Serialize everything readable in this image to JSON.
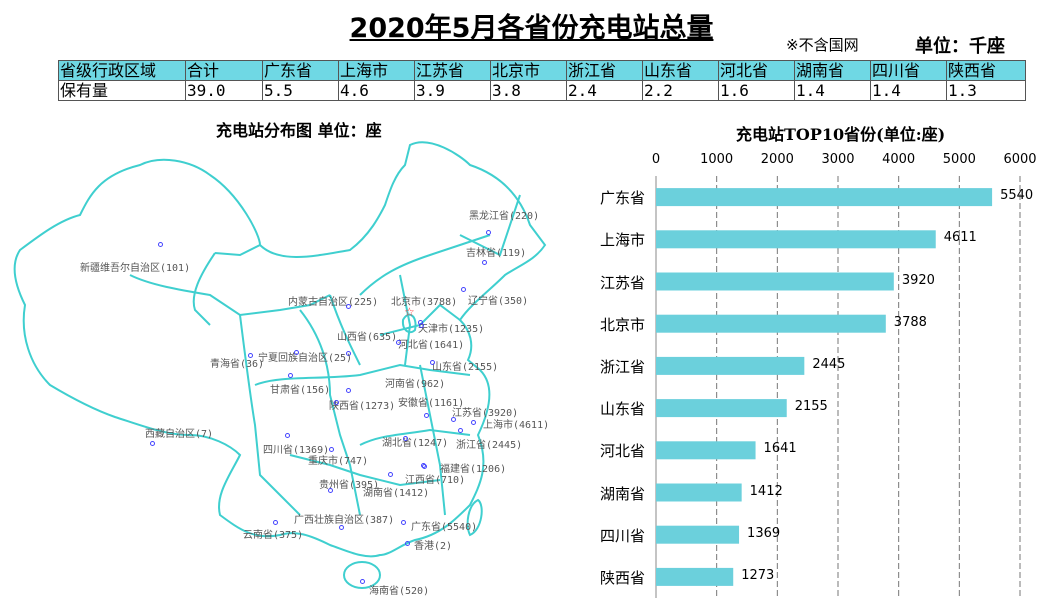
{
  "title": "2020年5月各省份充电站总量",
  "note": "※不含国网",
  "unit": "单位：千座",
  "table": {
    "header": [
      "省级行政区域",
      "合计",
      "广东省",
      "上海市",
      "江苏省",
      "北京市",
      "浙江省",
      "山东省",
      "河北省",
      "湖南省",
      "四川省",
      "陕西省"
    ],
    "row": [
      "保有量",
      "39.0",
      "5.5",
      "4.6",
      "3.9",
      "3.8",
      "2.4",
      "2.2",
      "1.6",
      "1.4",
      "1.4",
      "1.3"
    ]
  },
  "map": {
    "title": "充电站分布图   单位：座",
    "labels": [
      "新疆维吾尔自治区(101)",
      "黑龙江省(220)",
      "吉林省(119)",
      "内蒙古自治区(225)",
      "北京市(3788)",
      "辽宁省(350)",
      "天津市(1235)",
      "山西省(635)",
      "河北省(1641)",
      "青海省(36)",
      "宁夏回族自治区(25)",
      "山东省(2155)",
      "甘肃省(156)",
      "河南省(962)",
      "陕西省(1273)",
      "安徽省(1161)",
      "江苏省(3920)",
      "上海市(4611)",
      "西藏自治区(7)",
      "四川省(1369)",
      "湖北省(1247)",
      "浙江省(2445)",
      "重庆市(747)",
      "福建省(1206)",
      "贵州省(395)",
      "江西省(710)",
      "湖南省(1412)",
      "广西壮族自治区(387)",
      "广东省(5540)",
      "云南省(375)",
      "香港(2)",
      "海南省(520)"
    ]
  },
  "chart_data": {
    "type": "bar",
    "orientation": "horizontal",
    "title": "充电站TOP10省份(单位:座)",
    "categories": [
      "广东省",
      "上海市",
      "江苏省",
      "北京市",
      "浙江省",
      "山东省",
      "河北省",
      "湖南省",
      "四川省",
      "陕西省"
    ],
    "values": [
      5540,
      4611,
      3920,
      3788,
      2445,
      2155,
      1641,
      1412,
      1369,
      1273
    ],
    "xlim": [
      0,
      6000
    ],
    "ticks": [
      "0",
      "1000",
      "2000",
      "3000",
      "4000",
      "5000",
      "6000"
    ],
    "color": "#6bd0dc",
    "grid": true
  }
}
